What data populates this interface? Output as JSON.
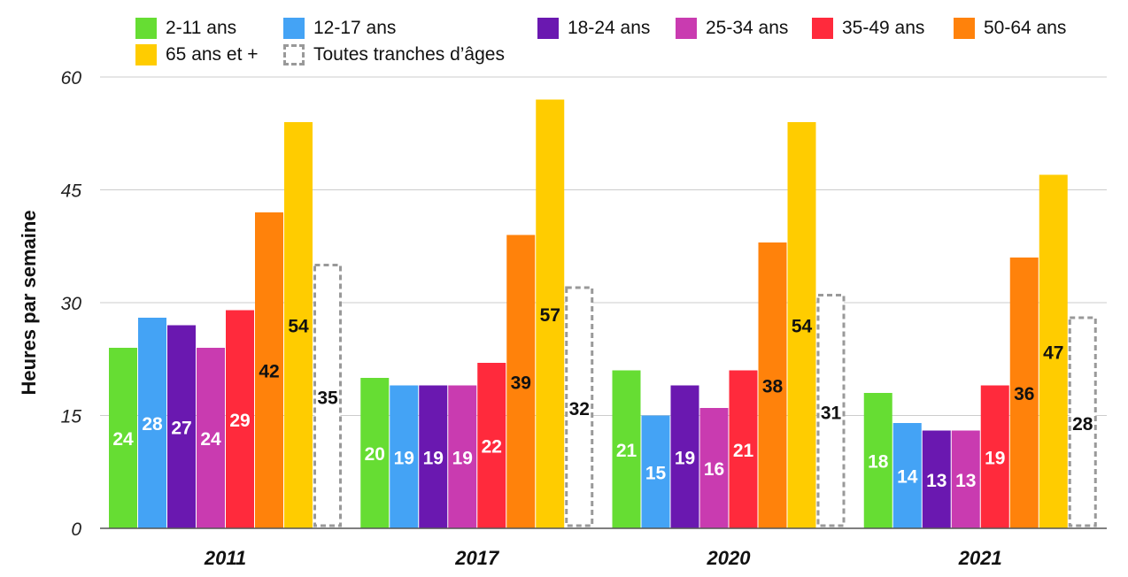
{
  "chart_data": {
    "type": "bar",
    "ylabel": "Heures par semaine",
    "ylim": [
      0,
      60
    ],
    "yticks": [
      "0",
      "15",
      "30",
      "45",
      "60"
    ],
    "grid": true,
    "legend_position": "top",
    "categories": [
      "2011",
      "2017",
      "2020",
      "2021"
    ],
    "series": [
      {
        "name": "2-11 ans",
        "color": "#66dd33",
        "label_color": "#ffffff",
        "values": [
          24,
          20,
          21,
          18
        ]
      },
      {
        "name": "12-17 ans",
        "color": "#44a3f5",
        "label_color": "#ffffff",
        "values": [
          28,
          19,
          15,
          14
        ]
      },
      {
        "name": "18-24 ans",
        "color": "#6a18b0",
        "label_color": "#ffffff",
        "values": [
          27,
          19,
          19,
          13
        ]
      },
      {
        "name": "25-34 ans",
        "color": "#c93bb0",
        "label_color": "#ffffff",
        "values": [
          24,
          19,
          16,
          13
        ]
      },
      {
        "name": "35-49 ans",
        "color": "#ff2a3c",
        "label_color": "#ffffff",
        "values": [
          29,
          22,
          21,
          19
        ]
      },
      {
        "name": "50-64 ans",
        "color": "#ff820b",
        "label_color": "#111111",
        "values": [
          42,
          39,
          38,
          36
        ]
      },
      {
        "name": "65 ans et +",
        "color": "#ffcc00",
        "label_color": "#111111",
        "values": [
          54,
          57,
          54,
          47
        ]
      },
      {
        "name": "Toutes tranches d’âges",
        "color": "#ffffff",
        "outline": "#999999",
        "dashed": true,
        "label_color": "#111111",
        "values": [
          35,
          32,
          31,
          28
        ]
      }
    ]
  }
}
